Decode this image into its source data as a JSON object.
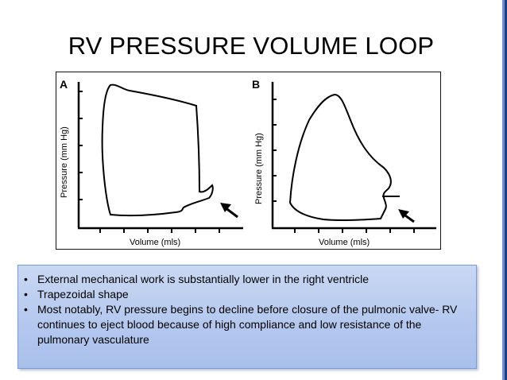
{
  "slide": {
    "title": "RV PRESSURE VOLUME LOOP"
  },
  "figure": {
    "panel_a": {
      "label": "A",
      "ylabel": "Pressure (mm Hg)",
      "xlabel": "Volume (mls)"
    },
    "panel_b": {
      "label": "B",
      "ylabel": "Pressure (mm Hg)",
      "xlabel": "Volume (mls)"
    }
  },
  "bullets": [
    "External mechanical work  is substantially lower in the right ventricle",
    "Trapezoidal shape",
    "Most notably, RV pressure begins to decline before closure of the pulmonic valve- RV continues to eject blood because of high compliance and low resistance of the pulmonary vasculature"
  ],
  "bullet_glyph": "•",
  "colors": {
    "bullet_box": "#b3c7ee",
    "accent_bar": "#1f3f8a"
  },
  "icons": {
    "arrow": "arrow-pointer-icon",
    "bullet": "bullet-dot-icon"
  }
}
